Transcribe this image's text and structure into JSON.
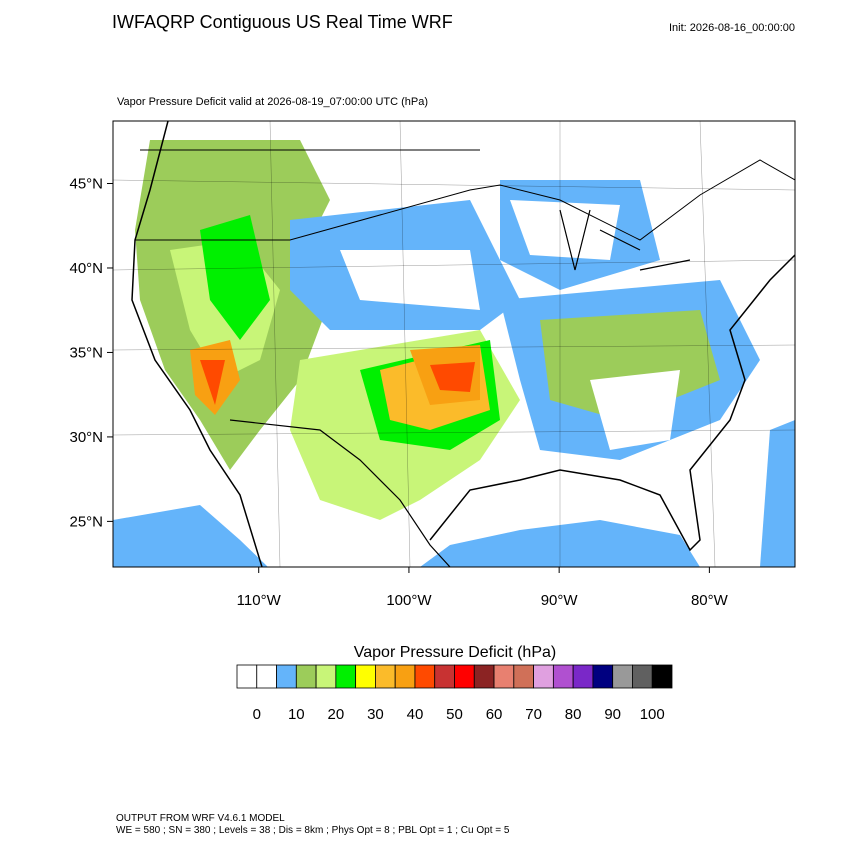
{
  "header": {
    "title": "IWFAQRP Contiguous US Real Time WRF",
    "init": "Init: 2026-08-16_00:00:00"
  },
  "map": {
    "subtitle": "Vapor Pressure Deficit valid at 2026-08-19_07:00:00 UTC   (hPa)",
    "xlim": [
      -119.7,
      -74.3
    ],
    "ylim": [
      22.3,
      48.7
    ],
    "xticks": [
      {
        "value": -110,
        "label": "110°W"
      },
      {
        "value": -100,
        "label": "100°W"
      },
      {
        "value": -90,
        "label": "90°W"
      },
      {
        "value": -80,
        "label": "80°W"
      }
    ],
    "yticks": [
      {
        "value": 25,
        "label": "25°N"
      },
      {
        "value": 30,
        "label": "30°N"
      },
      {
        "value": 35,
        "label": "35°N"
      },
      {
        "value": 40,
        "label": "40°N"
      },
      {
        "value": 45,
        "label": "45°N"
      }
    ]
  },
  "colorbar": {
    "title": "Vapor Pressure Deficit  (hPa)",
    "colors": [
      "#ffffff",
      "#ffffff",
      "#64b4fa",
      "#9ccc5a",
      "#c8f578",
      "#00f000",
      "#ffff00",
      "#fbbb2a",
      "#f8a012",
      "#ff4a00",
      "#c83232",
      "#ff0000",
      "#8b2323",
      "#e88070",
      "#d07058",
      "#e0a0e0",
      "#b050d0",
      "#7a28c8",
      "#000080",
      "#999999",
      "#606060",
      "#000000"
    ],
    "ticks": [
      0,
      10,
      20,
      30,
      40,
      50,
      60,
      70,
      80,
      90,
      100
    ]
  },
  "footer": {
    "lines": [
      "OUTPUT FROM WRF V4.6.1 MODEL",
      "WE = 580 ; SN = 380 ; Levels = 38 ; Dis = 8km ; Phys Opt = 8 ; PBL Opt = 1 ; Cu Opt = 5"
    ]
  }
}
